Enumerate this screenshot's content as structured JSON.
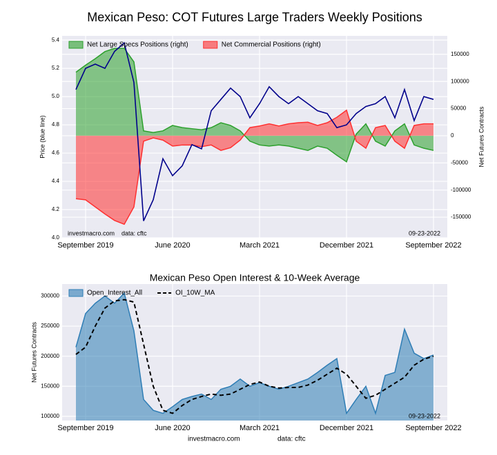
{
  "chart_data": [
    {
      "type": "line",
      "title": "Mexican Peso: COT Futures Large Traders Weekly Positions",
      "ylabel": "Price (blue line)",
      "y2label": "Net Futures Contracts",
      "x": [
        "2019-08",
        "2019-09",
        "2019-10",
        "2019-11",
        "2019-12",
        "2020-01",
        "2020-02",
        "2020-03",
        "2020-04",
        "2020-05",
        "2020-06",
        "2020-07",
        "2020-08",
        "2020-09",
        "2020-10",
        "2020-11",
        "2020-12",
        "2021-01",
        "2021-02",
        "2021-03",
        "2021-04",
        "2021-05",
        "2021-06",
        "2021-07",
        "2021-08",
        "2021-09",
        "2021-10",
        "2021-11",
        "2021-12",
        "2022-01",
        "2022-02",
        "2022-03",
        "2022-04",
        "2022-05",
        "2022-06",
        "2022-07",
        "2022-08",
        "2022-09"
      ],
      "xticks": [
        {
          "value": "2019-09",
          "label": "September 2019"
        },
        {
          "value": "2020-06",
          "label": "June 2020"
        },
        {
          "value": "2021-03",
          "label": "March 2021"
        },
        {
          "value": "2021-12",
          "label": "December 2021"
        },
        {
          "value": "2022-09",
          "label": "September 2022"
        }
      ],
      "ylim": [
        4.0,
        5.43
      ],
      "yticks": [
        {
          "value": 4,
          "label": "4.0"
        },
        4.2,
        4.4,
        4.6,
        4.8,
        {
          "value": 5,
          "label": "5.0"
        },
        5.2,
        5.4
      ],
      "y2lim": [
        -188000,
        184000
      ],
      "y2ticks": [
        -150000,
        -100000,
        -50000,
        0,
        50000,
        100000,
        150000
      ],
      "grid": true,
      "legend": "upper left",
      "series": [
        {
          "name": "Net Large Specs Positions (right)",
          "type": "area",
          "axis": "y2",
          "color": "#2ca02c",
          "values": [
            117000,
            130000,
            142000,
            155000,
            161000,
            161000,
            136000,
            9000,
            6000,
            9000,
            19000,
            15000,
            13000,
            11000,
            15000,
            24000,
            19000,
            9000,
            -10000,
            -17000,
            -19000,
            -17000,
            -19000,
            -23000,
            -27000,
            -19000,
            -23000,
            -36000,
            -48000,
            3000,
            22000,
            -10000,
            -19000,
            9000,
            22000,
            -17000,
            -23000,
            -27000
          ]
        },
        {
          "name": "Net Commercial Positions (right)",
          "type": "area",
          "axis": "y2",
          "color": "#ff3030",
          "values": [
            -116000,
            -118000,
            -131000,
            -144000,
            -156000,
            -163000,
            -131000,
            -10000,
            -4000,
            -8000,
            -19000,
            -17000,
            -17000,
            -20000,
            -17000,
            -27000,
            -22000,
            -8000,
            15000,
            18000,
            22000,
            18000,
            22000,
            24000,
            25000,
            19000,
            24000,
            34000,
            47000,
            -10000,
            -23000,
            15000,
            19000,
            -10000,
            -23000,
            19000,
            22000,
            22000
          ]
        },
        {
          "type": "line",
          "color": "#00008b",
          "values": [
            5.05,
            5.2,
            5.23,
            5.2,
            5.32,
            5.38,
            5.1,
            4.12,
            4.27,
            4.56,
            4.44,
            4.51,
            4.66,
            4.63,
            4.9,
            4.98,
            5.06,
            5.0,
            4.85,
            4.95,
            5.07,
            5.0,
            4.95,
            5.0,
            4.95,
            4.9,
            4.88,
            4.78,
            4.8,
            4.88,
            4.93,
            4.95,
            5.0,
            4.85,
            5.05,
            4.83,
            5.0,
            4.98
          ]
        }
      ],
      "annotations": [
        "investmacro.com    data: cftc",
        "09-23-2022"
      ]
    },
    {
      "type": "area",
      "title": "Mexican Peso Open Interest & 10-Week Average",
      "ylabel": "Net Futures Contracts",
      "x": [
        "2019-08",
        "2019-09",
        "2019-10",
        "2019-11",
        "2019-12",
        "2020-01",
        "2020-02",
        "2020-03",
        "2020-04",
        "2020-05",
        "2020-06",
        "2020-07",
        "2020-08",
        "2020-09",
        "2020-10",
        "2020-11",
        "2020-12",
        "2021-01",
        "2021-02",
        "2021-03",
        "2021-04",
        "2021-05",
        "2021-06",
        "2021-07",
        "2021-08",
        "2021-09",
        "2021-10",
        "2021-11",
        "2021-12",
        "2022-01",
        "2022-02",
        "2022-03",
        "2022-04",
        "2022-05",
        "2022-06",
        "2022-07",
        "2022-08",
        "2022-09"
      ],
      "xticks": [
        {
          "value": "2019-09",
          "label": "September 2019"
        },
        {
          "value": "2020-06",
          "label": "June 2020"
        },
        {
          "value": "2021-03",
          "label": "March 2021"
        },
        {
          "value": "2021-12",
          "label": "December 2021"
        },
        {
          "value": "2022-09",
          "label": "September 2022"
        }
      ],
      "ylim": [
        93000,
        320000
      ],
      "yticks": [
        100000,
        150000,
        200000,
        250000,
        300000
      ],
      "grid": true,
      "legend": "upper left",
      "series": [
        {
          "name": "Open_Interest_All",
          "type": "area",
          "color": "#2e7db5",
          "values": [
            215000,
            271000,
            288000,
            300000,
            288000,
            305000,
            242000,
            128000,
            110000,
            105000,
            116000,
            128000,
            133000,
            137000,
            128000,
            145000,
            150000,
            162000,
            150000,
            156000,
            150000,
            145000,
            150000,
            156000,
            162000,
            173000,
            185000,
            196000,
            105000,
            128000,
            150000,
            105000,
            168000,
            173000,
            245000,
            205000,
            196000,
            202000
          ]
        },
        {
          "name": "OI_10W_MA",
          "type": "line",
          "dash": true,
          "color": "#000000",
          "values": [
            203000,
            215000,
            250000,
            280000,
            292000,
            294000,
            290000,
            220000,
            150000,
            110000,
            105000,
            118000,
            128000,
            133000,
            137000,
            135000,
            137000,
            145000,
            153000,
            157000,
            150000,
            147000,
            148000,
            148000,
            152000,
            160000,
            170000,
            180000,
            170000,
            150000,
            130000,
            135000,
            145000,
            155000,
            165000,
            185000,
            195000,
            200000
          ]
        }
      ],
      "annotations": [
        "09-23-2022"
      ],
      "footer": [
        "investmacro.com",
        "data: cftc"
      ]
    }
  ]
}
